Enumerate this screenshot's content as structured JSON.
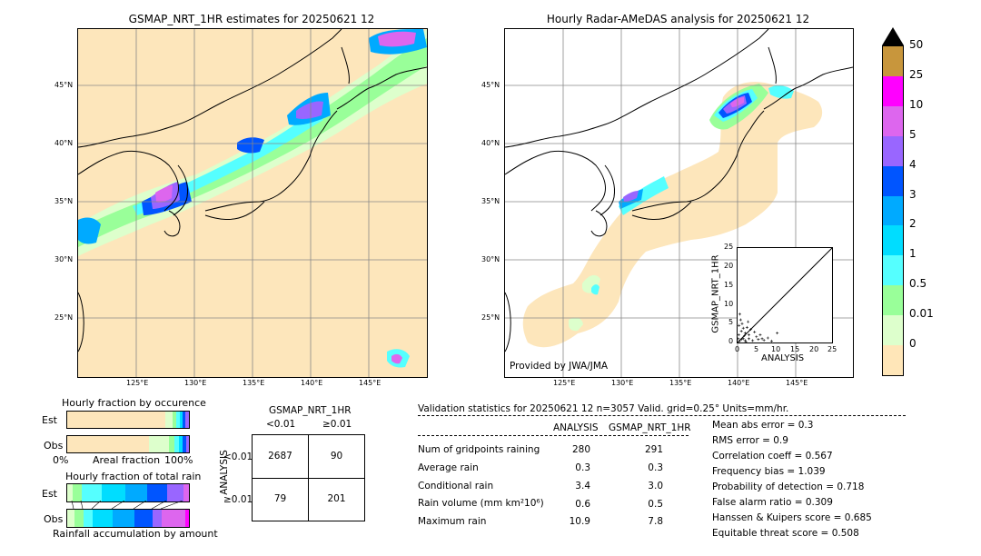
{
  "left_map": {
    "title": "GSMAP_NRT_1HR estimates for 20250621 12",
    "lon_ticks": [
      "125°E",
      "130°E",
      "135°E",
      "140°E",
      "145°E"
    ],
    "lat_ticks": [
      "45°N",
      "40°N",
      "35°N",
      "30°N",
      "25°N"
    ]
  },
  "right_map": {
    "title": "Hourly Radar-AMeDAS analysis for 20250621 12",
    "lon_ticks": [
      "125°E",
      "130°E",
      "135°E",
      "140°E",
      "145°E"
    ],
    "lat_ticks": [
      "45°N",
      "40°N",
      "35°N",
      "30°N",
      "25°N"
    ],
    "credit": "Provided by JWA/JMA"
  },
  "colorbar": {
    "labels": [
      "50",
      "25",
      "10",
      "5",
      "4",
      "3",
      "2",
      "1",
      "0.5",
      "0.01",
      "0"
    ],
    "colors": [
      "#c8963c",
      "#ff00ff",
      "#dd66ee",
      "#9966ff",
      "#0055ff",
      "#00aaff",
      "#00ddff",
      "#55ffff",
      "#99ff99",
      "#ddffcc",
      "#ffe6b8"
    ]
  },
  "scatter": {
    "xlabel": "ANALYSIS",
    "ylabel": "GSMAP_NRT_1HR",
    "ticks": [
      "0",
      "5",
      "10",
      "15",
      "20",
      "25"
    ]
  },
  "chart_data": {
    "type": "scatter",
    "xlabel": "ANALYSIS",
    "ylabel": "GSMAP_NRT_1HR",
    "xlim": [
      0,
      25
    ],
    "ylim": [
      0,
      25
    ],
    "points": [
      [
        0.5,
        0.3
      ],
      [
        1,
        0.8
      ],
      [
        1.5,
        1
      ],
      [
        2,
        0.5
      ],
      [
        0.3,
        2
      ],
      [
        1,
        3
      ],
      [
        2,
        2.5
      ],
      [
        3,
        1
      ],
      [
        4,
        0.5
      ],
      [
        5,
        1.5
      ],
      [
        6,
        2
      ],
      [
        7,
        0.6
      ],
      [
        8,
        1.2
      ],
      [
        9,
        0.4
      ],
      [
        1.2,
        5
      ],
      [
        0.8,
        6
      ],
      [
        2.5,
        4
      ],
      [
        3.5,
        3.5
      ],
      [
        0.4,
        4.5
      ],
      [
        1.8,
        1.8
      ],
      [
        2.2,
        0.2
      ],
      [
        0.2,
        1
      ],
      [
        3,
        2
      ],
      [
        5.5,
        0.8
      ],
      [
        10.5,
        2.5
      ],
      [
        0.6,
        7.5
      ],
      [
        1.5,
        3.8
      ],
      [
        4.5,
        2.8
      ],
      [
        6.5,
        1
      ],
      [
        2.8,
        5.5
      ]
    ]
  },
  "occurrence": {
    "title": "Hourly fraction by occurence",
    "est_label": "Est",
    "obs_label": "Obs",
    "axis_left": "0%",
    "axis_mid": "Areal fraction",
    "axis_right": "100%"
  },
  "total": {
    "title": "Hourly fraction of total rain",
    "est_label": "Est",
    "obs_label": "Obs",
    "footer": "Rainfall accumulation by amount"
  },
  "contingency": {
    "header": "GSMAP_NRT_1HR",
    "col1": "<0.01",
    "col2": "≥0.01",
    "row_axis": "ANALYSIS",
    "row1": "<0.01",
    "row2": "≥0.01",
    "a": "2687",
    "b": "90",
    "c": "79",
    "d": "201"
  },
  "validation": {
    "header": "Validation statistics for 20250621 12  n=3057 Valid. grid=0.25° Units=mm/hr.",
    "col_analysis": "ANALYSIS",
    "col_gsmap": "GSMAP_NRT_1HR",
    "rows": [
      {
        "label": "Num of gridpoints raining",
        "a": "280",
        "g": "291"
      },
      {
        "label": "Average rain",
        "a": "0.3",
        "g": "0.3"
      },
      {
        "label": "Conditional rain",
        "a": "3.4",
        "g": "3.0"
      },
      {
        "label": "Rain volume (mm km²10⁶)",
        "a": "0.6",
        "g": "0.5"
      },
      {
        "label": "Maximum rain",
        "a": "10.9",
        "g": "7.8"
      }
    ],
    "scores": [
      "Mean abs error =    0.3",
      "RMS error =    0.9",
      "Correlation coeff =  0.567",
      "Frequency bias =  1.039",
      "Probability of detection =  0.718",
      "False alarm ratio =  0.309",
      "Hanssen & Kuipers score =  0.685",
      "Equitable threat score =  0.508"
    ]
  }
}
